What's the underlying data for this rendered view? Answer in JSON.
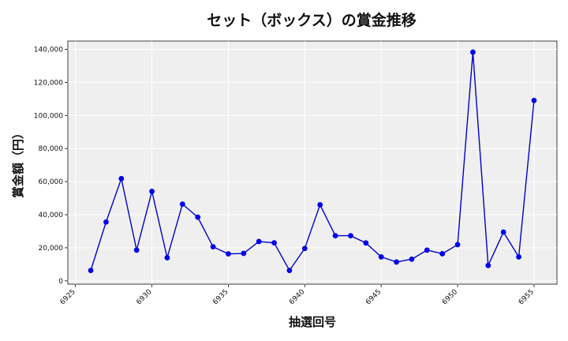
{
  "chart_data": {
    "type": "line",
    "title": "セット（ボックス）の賞金推移",
    "xlabel": "抽選回号",
    "ylabel": "賞金額（円）",
    "xlim": [
      6924.5,
      6956.5
    ],
    "ylim": [
      -2000,
      145000
    ],
    "x_ticks": [
      6925,
      6930,
      6935,
      6940,
      6945,
      6950,
      6955
    ],
    "x_tick_labels": [
      "6925",
      "6930",
      "6935",
      "6940",
      "6945",
      "6950",
      "6955"
    ],
    "y_ticks": [
      0,
      20000,
      40000,
      60000,
      80000,
      100000,
      120000,
      140000
    ],
    "y_tick_labels": [
      "0",
      "20,000",
      "40,000",
      "60,000",
      "80,000",
      "100,000",
      "120,000",
      "140,000"
    ],
    "grid": true,
    "colors": {
      "line": "#0000cc",
      "marker": "#0000ee",
      "plot_bg": "#efefef",
      "grid": "#ffffff"
    },
    "series": [
      {
        "x": [
          6926,
          6927,
          6928,
          6929,
          6930,
          6931,
          6932,
          6933,
          6934,
          6935,
          6936,
          6937,
          6938,
          6939,
          6940,
          6941,
          6942,
          6943,
          6944,
          6945,
          6946,
          6947,
          6948,
          6949,
          6950,
          6951,
          6952,
          6953,
          6954,
          6955
        ],
        "values": [
          6300,
          35600,
          61800,
          18600,
          54100,
          14000,
          46400,
          38500,
          20600,
          16300,
          16600,
          23800,
          23000,
          6300,
          19600,
          46000,
          27300,
          27300,
          22900,
          14500,
          11400,
          13100,
          18600,
          16400,
          21900,
          138300,
          9300,
          29500,
          14500,
          109100
        ]
      }
    ]
  }
}
